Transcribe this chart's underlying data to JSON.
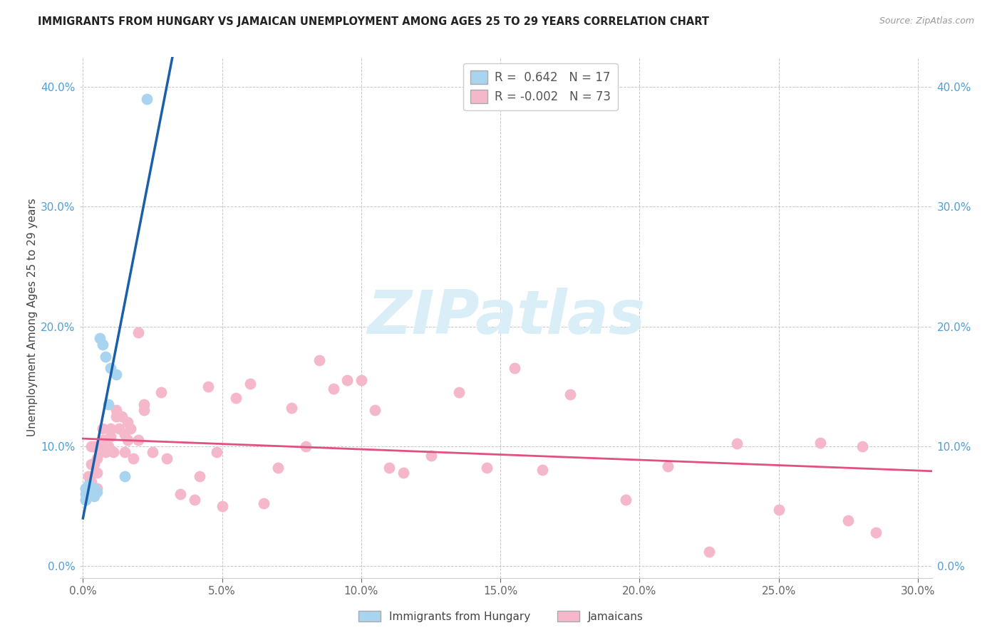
{
  "title": "IMMIGRANTS FROM HUNGARY VS JAMAICAN UNEMPLOYMENT AMONG AGES 25 TO 29 YEARS CORRELATION CHART",
  "source": "Source: ZipAtlas.com",
  "ylabel": "Unemployment Among Ages 25 to 29 years",
  "xlim": [
    -0.001,
    0.305
  ],
  "ylim": [
    -0.01,
    0.425
  ],
  "xtick_vals": [
    0.0,
    0.05,
    0.1,
    0.15,
    0.2,
    0.25,
    0.3
  ],
  "ytick_vals": [
    0.0,
    0.1,
    0.2,
    0.3,
    0.4
  ],
  "legend1_label_r": "R =  0.642",
  "legend1_label_n": "N = 17",
  "legend2_label_r": "R = -0.002",
  "legend2_label_n": "N = 73",
  "blue_scatter_color": "#a8d4f0",
  "pink_scatter_color": "#f5b8cb",
  "blue_line_color": "#1a5fa8",
  "pink_line_color": "#e05080",
  "blue_r_color": "#4472c4",
  "pink_r_color": "#e05080",
  "right_tick_color": "#4e9fd4",
  "left_tick_color": "#4e9fd4",
  "watermark_text": "ZIPatlas",
  "watermark_color": "#daeef8",
  "hungary_x": [
    0.001,
    0.001,
    0.001,
    0.002,
    0.002,
    0.003,
    0.004,
    0.004,
    0.005,
    0.006,
    0.007,
    0.008,
    0.009,
    0.01,
    0.012,
    0.015,
    0.023
  ],
  "hungary_y": [
    0.06,
    0.065,
    0.055,
    0.063,
    0.068,
    0.06,
    0.058,
    0.065,
    0.062,
    0.19,
    0.185,
    0.175,
    0.135,
    0.165,
    0.16,
    0.075,
    0.39
  ],
  "jamaica_x": [
    0.001,
    0.001,
    0.002,
    0.002,
    0.003,
    0.003,
    0.003,
    0.004,
    0.004,
    0.005,
    0.005,
    0.005,
    0.006,
    0.006,
    0.007,
    0.007,
    0.008,
    0.008,
    0.009,
    0.01,
    0.01,
    0.011,
    0.012,
    0.012,
    0.013,
    0.014,
    0.015,
    0.015,
    0.016,
    0.016,
    0.017,
    0.018,
    0.02,
    0.02,
    0.022,
    0.022,
    0.025,
    0.028,
    0.03,
    0.035,
    0.04,
    0.042,
    0.045,
    0.048,
    0.05,
    0.055,
    0.06,
    0.065,
    0.07,
    0.075,
    0.08,
    0.085,
    0.09,
    0.095,
    0.1,
    0.105,
    0.11,
    0.115,
    0.125,
    0.135,
    0.145,
    0.155,
    0.165,
    0.175,
    0.195,
    0.21,
    0.225,
    0.235,
    0.25,
    0.265,
    0.275,
    0.28,
    0.285
  ],
  "jamaica_y": [
    0.065,
    0.055,
    0.075,
    0.06,
    0.07,
    0.085,
    0.1,
    0.085,
    0.1,
    0.065,
    0.078,
    0.09,
    0.1,
    0.095,
    0.105,
    0.115,
    0.095,
    0.105,
    0.1,
    0.108,
    0.115,
    0.095,
    0.125,
    0.13,
    0.115,
    0.125,
    0.11,
    0.095,
    0.105,
    0.12,
    0.115,
    0.09,
    0.195,
    0.105,
    0.13,
    0.135,
    0.095,
    0.145,
    0.09,
    0.06,
    0.055,
    0.075,
    0.15,
    0.095,
    0.05,
    0.14,
    0.152,
    0.052,
    0.082,
    0.132,
    0.1,
    0.172,
    0.148,
    0.155,
    0.155,
    0.13,
    0.082,
    0.078,
    0.092,
    0.145,
    0.082,
    0.165,
    0.08,
    0.143,
    0.055,
    0.083,
    0.012,
    0.102,
    0.047,
    0.103,
    0.038,
    0.1,
    0.028
  ]
}
